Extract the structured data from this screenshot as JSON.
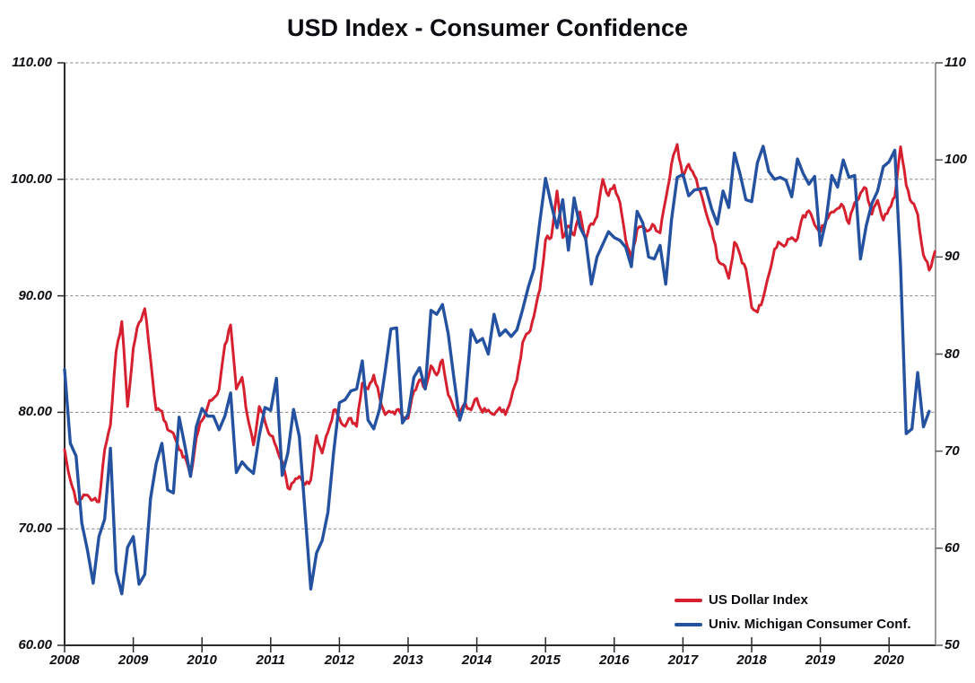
{
  "title": "USD Index - Consumer Confidence",
  "axes": {
    "left_ticks": [
      "110.00",
      "100.00",
      "90.00",
      "80.00",
      "70.00",
      "60.00"
    ],
    "right_ticks": [
      "110",
      "100",
      "90",
      "80",
      "70",
      "60",
      "50"
    ],
    "x_ticks": [
      "2008",
      "2009",
      "2010",
      "2011",
      "2012",
      "2013",
      "2014",
      "2015",
      "2016",
      "2017",
      "2018",
      "2019",
      "2020"
    ]
  },
  "colors": {
    "usd_index_red": "#D6202F",
    "michigan_blue": "#2552A0",
    "gridline_gray": "#8C8C8C",
    "axis_dark": "#2B2B2B",
    "axis_right_gray": "#7A7A7A",
    "text_black": "#0c0d12"
  },
  "chart_data": {
    "type": "line",
    "title": "USD Index - Consumer Confidence",
    "x_frequency": "monthly",
    "x_tick_labels": [
      "2008",
      "2009",
      "2010",
      "2011",
      "2012",
      "2013",
      "2014",
      "2015",
      "2016",
      "2017",
      "2018",
      "2019",
      "2020"
    ],
    "left_axis": {
      "min": 60,
      "max": 110,
      "tick_step": 10,
      "tick_labels": [
        "110.00",
        "100.00",
        "90.00",
        "80.00",
        "70.00",
        "60.00"
      ]
    },
    "right_axis": {
      "min": 50,
      "max": 110,
      "tick_step": 10,
      "tick_labels": [
        "110",
        "100",
        "90",
        "80",
        "70",
        "60",
        "50"
      ]
    },
    "grid": "horizontal-dashed",
    "legend_position": "bottom-right-inside",
    "series": [
      {
        "name": "US Dollar Index",
        "color": "#D6202F",
        "axis": "left",
        "start": "2008-01",
        "end": "2020-09",
        "values": [
          76.8,
          74.2,
          72.3,
          72.6,
          72.9,
          72.5,
          72.3,
          76.8,
          78.9,
          85.2,
          87.8,
          80.5,
          85.5,
          87.7,
          88.9,
          84.6,
          80.2,
          80.1,
          78.5,
          78.2,
          76.8,
          76.2,
          74.5,
          77.8,
          79.3,
          80.5,
          81.2,
          82.0,
          85.8,
          87.5,
          82.0,
          83.0,
          79.5,
          77.2,
          80.5,
          79.2,
          78.0,
          77.0,
          75.8,
          73.5,
          74.0,
          74.5,
          73.8,
          74.2,
          78.0,
          76.5,
          78.3,
          80.2,
          79.5,
          78.8,
          79.5,
          78.8,
          82.5,
          82.0,
          83.2,
          81.3,
          79.8,
          80.0,
          80.2,
          79.7,
          79.5,
          81.8,
          82.8,
          82.0,
          84.0,
          83.2,
          84.5,
          81.5,
          80.3,
          79.8,
          80.8,
          80.2,
          81.2,
          80.0,
          80.2,
          79.8,
          80.4,
          79.8,
          81.2,
          82.8,
          86.0,
          86.8,
          88.3,
          90.5,
          94.8,
          95.0,
          99.0,
          95.0,
          96.0,
          95.2,
          97.2,
          94.8,
          96.2,
          96.8,
          100.0,
          98.6,
          99.5,
          98.0,
          94.8,
          93.2,
          95.7,
          96.0,
          95.6,
          96.0,
          95.4,
          98.3,
          101.3,
          103.0,
          100.2,
          101.3,
          100.3,
          99.0,
          97.2,
          95.8,
          93.2,
          92.7,
          91.5,
          94.6,
          93.5,
          92.3,
          89.0,
          88.6,
          89.8,
          91.8,
          94.0,
          94.5,
          94.4,
          95.0,
          94.9,
          96.9,
          97.3,
          96.1,
          95.5,
          96.5,
          97.2,
          97.5,
          97.7,
          96.2,
          98.0,
          98.8,
          99.2,
          97.0,
          98.2,
          96.5,
          97.5,
          98.5,
          102.8,
          99.5,
          98.0,
          97.0,
          93.5,
          92.2,
          93.8
        ]
      },
      {
        "name": "Univ. Michigan Consumer Conf.",
        "color": "#2552A0",
        "axis": "right",
        "start": "2008-01",
        "end": "2020-08",
        "values": [
          78.4,
          70.8,
          69.5,
          62.6,
          59.8,
          56.4,
          61.2,
          63.0,
          70.3,
          57.6,
          55.3,
          60.1,
          61.2,
          56.3,
          57.3,
          65.1,
          68.7,
          70.8,
          66.0,
          65.7,
          73.5,
          70.6,
          67.4,
          72.5,
          74.4,
          73.6,
          73.6,
          72.2,
          73.6,
          76.0,
          67.8,
          68.9,
          68.2,
          67.7,
          71.6,
          74.5,
          74.2,
          77.5,
          67.5,
          69.8,
          74.3,
          71.5,
          63.7,
          55.8,
          59.5,
          60.8,
          63.7,
          69.9,
          75.0,
          75.3,
          76.2,
          76.4,
          79.3,
          73.2,
          72.3,
          74.3,
          78.3,
          82.6,
          82.7,
          72.9,
          73.8,
          77.6,
          78.6,
          76.4,
          84.5,
          84.1,
          85.1,
          82.1,
          77.5,
          73.2,
          75.1,
          82.5,
          81.2,
          81.6,
          80.0,
          84.1,
          81.9,
          82.5,
          81.8,
          82.5,
          84.6,
          86.9,
          88.8,
          93.6,
          98.1,
          95.4,
          93.0,
          95.9,
          90.7,
          96.1,
          93.1,
          91.9,
          87.2,
          90.0,
          91.3,
          92.6,
          92.0,
          91.7,
          91.0,
          89.0,
          94.7,
          93.5,
          90.0,
          89.8,
          91.2,
          87.2,
          93.8,
          98.2,
          98.5,
          96.3,
          96.9,
          97.0,
          97.1,
          95.0,
          93.4,
          96.8,
          95.1,
          100.7,
          98.5,
          95.9,
          95.7,
          99.7,
          101.4,
          98.8,
          98.0,
          98.2,
          97.9,
          96.2,
          100.1,
          98.6,
          97.5,
          98.3,
          91.2,
          93.8,
          98.4,
          97.2,
          100.0,
          98.2,
          98.4,
          89.8,
          93.2,
          95.5,
          96.8,
          99.3,
          99.8,
          101.0,
          89.1,
          71.8,
          72.3,
          78.1,
          72.5,
          74.1
        ]
      }
    ]
  }
}
